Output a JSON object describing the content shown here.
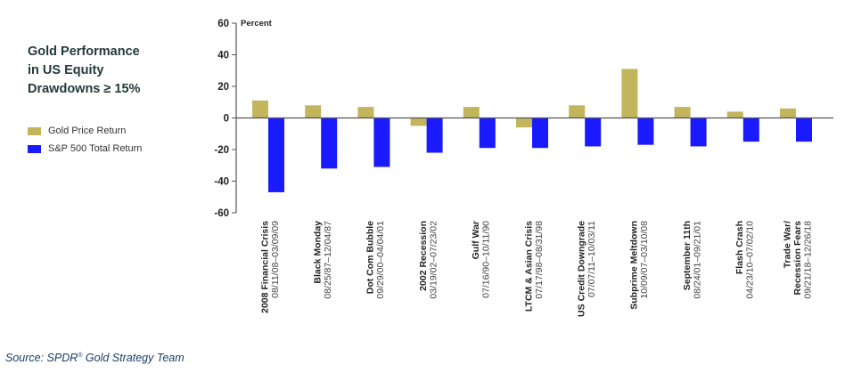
{
  "title_lines": [
    "Gold Performance",
    "in US Equity",
    "Drawdowns ≥ 15%"
  ],
  "source": {
    "text": "Source: SPDR",
    "sup": "®",
    "rest": " Gold Strategy Team"
  },
  "colors": {
    "gold": "#c2b55c",
    "sp500": "#1a1aff",
    "axis": "#555555",
    "text": "#333333"
  },
  "chart_data": {
    "type": "bar",
    "ylabel": "Percent",
    "ylim": [
      -60,
      60
    ],
    "yticks": [
      60,
      40,
      20,
      0,
      -20,
      -40,
      -60
    ],
    "legend_position": "left",
    "categories": [
      {
        "name": "2008 Financial Crisis",
        "dates": "08/11/08–03/09/09"
      },
      {
        "name": "Black Monday",
        "dates": "08/25/87–12/04/87"
      },
      {
        "name": "Dot Com Bubble",
        "dates": "09/29/00–04/04/01"
      },
      {
        "name": "2002 Recession",
        "dates": "03/19/02–07/23/02"
      },
      {
        "name": "Gulf War",
        "dates": "07/16/90–10/11/90"
      },
      {
        "name": "LTCM & Asian Crisis",
        "dates": "07/17/98–08/31/98"
      },
      {
        "name": "US Credit Downgrade",
        "dates": "07/07/11–10/03/11"
      },
      {
        "name": "Subprime Meltdown",
        "dates": "10/09/07–03/10/08"
      },
      {
        "name": "September 11th",
        "dates": "08/24/01–09/21/01"
      },
      {
        "name": "Flash Crash",
        "dates": "04/23/10–07/02/10"
      },
      {
        "name": "Trade War/ Recession Fears",
        "dates": "09/21/18–12/26/18"
      }
    ],
    "series": [
      {
        "name": "Gold Price Return",
        "values": [
          11,
          8,
          7,
          -5,
          7,
          -6,
          8,
          31,
          7,
          4,
          6
        ]
      },
      {
        "name": "S&P 500 Total Return",
        "values": [
          -47,
          -32,
          -31,
          -22,
          -19,
          -19,
          -18,
          -17,
          -18,
          -15,
          -15
        ]
      }
    ]
  }
}
